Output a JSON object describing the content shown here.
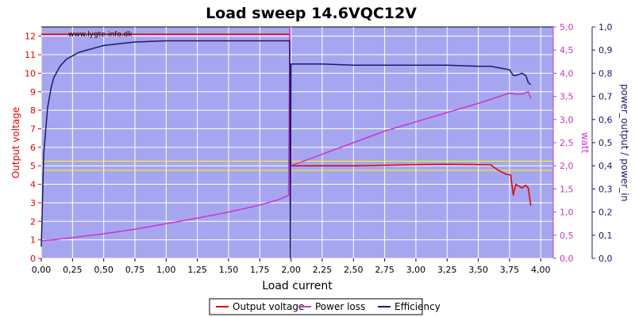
{
  "chart_data": {
    "type": "line",
    "title": "Load sweep 14.6VQC12V",
    "watermark": "www.lygte-info.dk",
    "xlabel": "Load current",
    "ylabel_left": "Output voltage",
    "ylabel_right1": "watt",
    "ylabel_right2": "power_output / power_in",
    "xlim": [
      0,
      4.1
    ],
    "ylim_left": [
      0,
      12.5
    ],
    "ylim_right1": [
      0,
      5.0
    ],
    "ylim_right2": [
      0,
      1.0
    ],
    "x_ticks": [
      "0,00",
      "0,25",
      "0,50",
      "0,75",
      "1,00",
      "1,25",
      "1,50",
      "1,75",
      "2,00",
      "2,25",
      "2,50",
      "2,75",
      "3,00",
      "3,25",
      "3,50",
      "3,75",
      "4,00"
    ],
    "y_left_ticks": [
      "0",
      "1",
      "2",
      "3",
      "4",
      "5",
      "6",
      "7",
      "8",
      "9",
      "10",
      "11",
      "12"
    ],
    "y_right1_ticks": [
      "0,0",
      "0,5",
      "1,0",
      "1,5",
      "2,0",
      "2,5",
      "3,0",
      "3,5",
      "4,0",
      "4,5",
      "5,0"
    ],
    "y_right2_ticks": [
      "0,0",
      "0,1",
      "0,2",
      "0,3",
      "0,4",
      "0,5",
      "0,6",
      "0,7",
      "0,8",
      "0,9",
      "1,0"
    ],
    "reference_lines_left": [
      4.75,
      5.25
    ],
    "grid": true,
    "legend_position": "bottom-center",
    "colors": {
      "background": "#a6a6f0",
      "grid": "#ffffff",
      "output_voltage": "#e00000",
      "power_loss": "#cc33cc",
      "efficiency": "#1a1a66",
      "reference": "#ffff00"
    },
    "series": [
      {
        "name": "Output voltage",
        "axis": "left",
        "x": [
          0.0,
          0.2,
          0.5,
          1.0,
          1.5,
          1.98,
          1.99,
          1.995,
          2.0,
          2.5,
          3.0,
          3.25,
          3.5,
          3.6,
          3.65,
          3.72,
          3.76,
          3.78,
          3.8,
          3.85,
          3.88,
          3.9,
          3.92
        ],
        "y": [
          12.1,
          12.1,
          12.1,
          12.1,
          12.1,
          12.1,
          12.1,
          5.0,
          5.0,
          5.0,
          5.06,
          5.08,
          5.06,
          5.05,
          4.8,
          4.55,
          4.5,
          3.4,
          4.0,
          3.8,
          3.95,
          3.8,
          2.85
        ]
      },
      {
        "name": "Power loss",
        "axis": "right1",
        "x": [
          0.0,
          0.1,
          0.25,
          0.5,
          0.75,
          1.0,
          1.25,
          1.5,
          1.75,
          1.9,
          1.98,
          1.99,
          1.995,
          2.0,
          2.25,
          2.5,
          2.75,
          3.0,
          3.25,
          3.5,
          3.75,
          3.8,
          3.85,
          3.9,
          3.92
        ],
        "y": [
          0.38,
          0.4,
          0.45,
          0.53,
          0.63,
          0.75,
          0.87,
          1.0,
          1.15,
          1.27,
          1.36,
          5.0,
          2.3,
          2.0,
          2.25,
          2.5,
          2.75,
          2.95,
          3.15,
          3.35,
          3.57,
          3.55,
          3.55,
          3.6,
          3.45
        ]
      },
      {
        "name": "Efficiency",
        "axis": "right2",
        "x": [
          0.0,
          0.02,
          0.05,
          0.08,
          0.1,
          0.15,
          0.2,
          0.3,
          0.5,
          0.75,
          1.0,
          1.5,
          1.75,
          1.98,
          1.99,
          1.995,
          2.0,
          2.25,
          2.5,
          2.75,
          3.0,
          3.25,
          3.5,
          3.6,
          3.7,
          3.75,
          3.78,
          3.8,
          3.85,
          3.88,
          3.9,
          3.92
        ],
        "y": [
          0.05,
          0.45,
          0.65,
          0.74,
          0.78,
          0.83,
          0.86,
          0.89,
          0.92,
          0.935,
          0.94,
          0.94,
          0.94,
          0.94,
          0.94,
          0.0,
          0.84,
          0.84,
          0.835,
          0.835,
          0.835,
          0.835,
          0.83,
          0.83,
          0.82,
          0.815,
          0.79,
          0.79,
          0.8,
          0.79,
          0.76,
          0.75
        ]
      }
    ]
  }
}
